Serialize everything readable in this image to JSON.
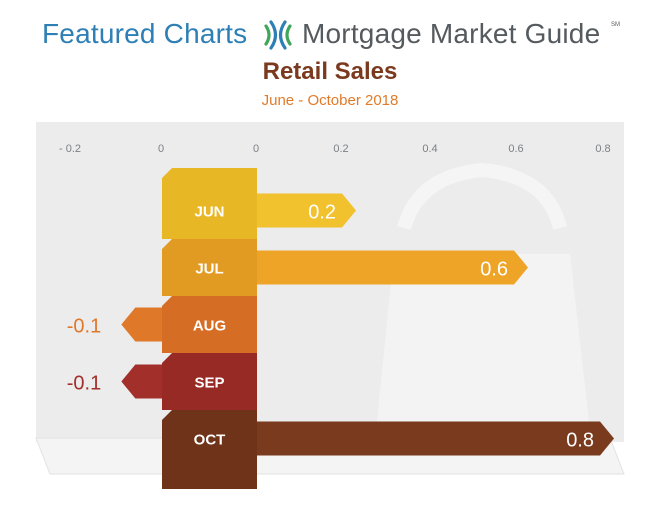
{
  "header": {
    "featured": "Featured Charts",
    "brand": "Mortgage Market Guide",
    "brand_mark": "SM"
  },
  "chart_data": {
    "type": "bar",
    "orientation": "horizontal",
    "title": "Retail Sales",
    "subtitle": "June - October 2018",
    "categories": [
      "JUN",
      "JUL",
      "AUG",
      "SEP",
      "OCT"
    ],
    "values": [
      0.2,
      0.6,
      -0.1,
      -0.1,
      0.8
    ],
    "value_labels": [
      "0.2",
      "0.6",
      "-0.1",
      "-0.1",
      "0.8"
    ],
    "tick_labels": [
      "- 0.2",
      "0",
      "0",
      "0.2",
      "0.4",
      "0.6",
      "0.8"
    ],
    "xlim": [
      -0.2,
      0.8
    ],
    "grid": false,
    "colors": {
      "JUN": "#f2c12e",
      "JUL": "#eda427",
      "AUG": "#e0782a",
      "SEP": "#a32f2a",
      "OCT": "#7a3a1e"
    },
    "column_colors": {
      "JUN": "#e7b726",
      "JUL": "#e19a22",
      "AUG": "#d56d25",
      "SEP": "#982a26",
      "OCT": "#6e3319"
    }
  }
}
